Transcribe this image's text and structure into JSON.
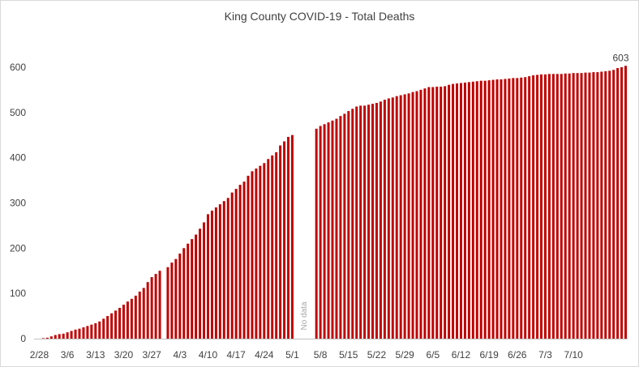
{
  "chart_data": {
    "type": "bar",
    "title": "King County COVID-19 - Total Deaths",
    "xlabel": "",
    "ylabel": "",
    "ylim": [
      0,
      650
    ],
    "yticks": [
      0,
      100,
      200,
      300,
      400,
      500,
      600
    ],
    "x_tick_labels": [
      "2/28",
      "3/6",
      "3/13",
      "3/20",
      "3/27",
      "4/3",
      "4/10",
      "4/17",
      "4/24",
      "5/1",
      "5/8",
      "5/15",
      "5/22",
      "5/29",
      "6/5",
      "6/12",
      "6/19",
      "6/26",
      "7/3",
      "7/10"
    ],
    "grid": false,
    "bar_color": "#c00000",
    "annotations": {
      "last_value_label": "603",
      "gap_label": "No data"
    },
    "values": [
      0,
      1,
      2,
      5,
      8,
      10,
      11,
      14,
      17,
      20,
      22,
      25,
      28,
      31,
      34,
      38,
      44,
      50,
      56,
      62,
      68,
      75,
      82,
      88,
      95,
      104,
      112,
      125,
      136,
      143,
      150,
      null,
      158,
      168,
      176,
      188,
      200,
      210,
      220,
      230,
      243,
      257,
      275,
      283,
      290,
      297,
      304,
      311,
      323,
      331,
      340,
      347,
      360,
      370,
      376,
      382,
      388,
      397,
      405,
      412,
      427,
      436,
      446,
      450,
      null,
      null,
      null,
      null,
      null,
      464,
      470,
      474,
      478,
      482,
      486,
      492,
      497,
      503,
      508,
      513,
      515,
      515,
      517,
      519,
      521,
      524,
      528,
      531,
      533,
      536,
      538,
      540,
      542,
      545,
      547,
      550,
      553,
      556,
      556,
      557,
      557,
      558,
      561,
      563,
      564,
      565,
      566,
      567,
      568,
      569,
      570,
      570,
      571,
      572,
      573,
      573,
      574,
      575,
      576,
      576,
      577,
      578,
      580,
      582,
      583,
      584,
      584,
      585,
      585,
      585,
      585,
      586,
      586,
      587,
      587,
      587,
      588,
      588,
      589,
      589,
      590,
      591,
      592,
      594,
      598,
      600,
      603
    ]
  }
}
